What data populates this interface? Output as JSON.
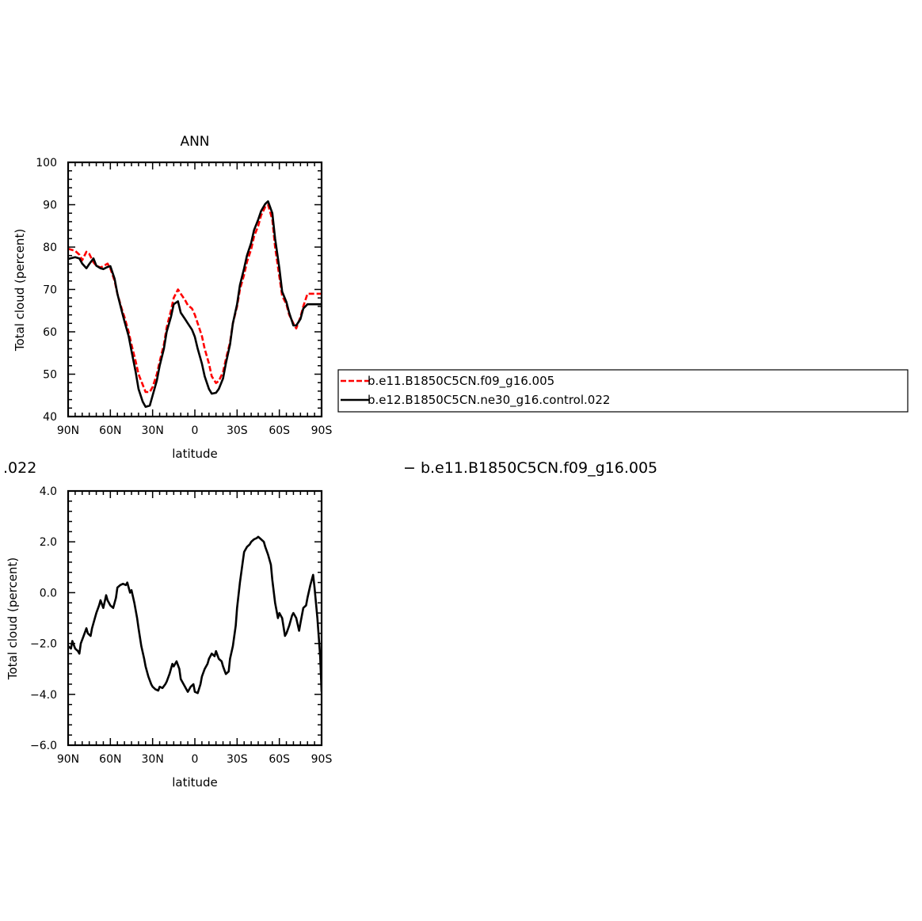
{
  "chart_data": [
    {
      "type": "line",
      "title": "ANN",
      "xlabel": "latitude",
      "ylabel": "Total cloud (percent)",
      "xlim": [
        90,
        -90
      ],
      "ylim": [
        40,
        100
      ],
      "x_ticks": [
        {
          "value": 90,
          "label": "90N"
        },
        {
          "value": 60,
          "label": "60N"
        },
        {
          "value": 30,
          "label": "30N"
        },
        {
          "value": 0,
          "label": "0"
        },
        {
          "value": -30,
          "label": "30S"
        },
        {
          "value": -60,
          "label": "60S"
        },
        {
          "value": -90,
          "label": "90S"
        }
      ],
      "y_ticks": [
        {
          "value": 40,
          "label": "40"
        },
        {
          "value": 50,
          "label": "50"
        },
        {
          "value": 60,
          "label": "60"
        },
        {
          "value": 70,
          "label": "70"
        },
        {
          "value": 80,
          "label": "80"
        },
        {
          "value": 90,
          "label": "90"
        },
        {
          "value": 100,
          "label": "100"
        }
      ],
      "grid": false,
      "legend_position": "right",
      "x": [
        90,
        85,
        82,
        80,
        77,
        75,
        72,
        70,
        67,
        65,
        62,
        60,
        57,
        55,
        52,
        50,
        47,
        45,
        42,
        40,
        37,
        35,
        32,
        30,
        27,
        25,
        22,
        20,
        17,
        15,
        12,
        10,
        7,
        5,
        2,
        0,
        -2,
        -5,
        -7,
        -10,
        -12,
        -15,
        -17,
        -20,
        -22,
        -25,
        -27,
        -30,
        -32,
        -35,
        -37,
        -40,
        -42,
        -45,
        -47,
        -50,
        -52,
        -55,
        -57,
        -60,
        -62,
        -65,
        -67,
        -70,
        -72,
        -75,
        -77,
        -80,
        -82,
        -85,
        -87,
        -90
      ],
      "series": [
        {
          "name": "b.e11.B1850C5CN.f09_g16.005",
          "color": "#ff0000",
          "style": "dashed",
          "values": [
            79.6,
            79.1,
            78.2,
            76.9,
            78.9,
            78.4,
            76.4,
            75.6,
            75.2,
            75.5,
            76.1,
            75.0,
            72.0,
            69.0,
            65.5,
            63.5,
            60.0,
            57.0,
            53.0,
            50.0,
            47.5,
            45.8,
            45.8,
            47.0,
            50.0,
            53.0,
            57.0,
            61.0,
            65.0,
            68.0,
            70.0,
            69.0,
            67.5,
            66.3,
            65.5,
            64.0,
            62.0,
            59.0,
            56.0,
            52.5,
            49.5,
            47.9,
            48.4,
            50.5,
            53.5,
            57.5,
            62.0,
            66.0,
            70.0,
            73.5,
            76.5,
            79.5,
            82.5,
            85.0,
            87.5,
            89.5,
            90.0,
            86.5,
            80.0,
            73.0,
            68.5,
            66.5,
            64.0,
            62.0,
            60.8,
            63.5,
            66.0,
            69.0,
            69.0,
            69.0,
            69.0,
            69.0
          ]
        },
        {
          "name": "b.e12.B1850C5CN.ne30_g16.control.022",
          "color": "#000000",
          "style": "solid",
          "values": [
            77.2,
            77.6,
            77.3,
            76.1,
            75.0,
            76.0,
            77.3,
            75.6,
            75.0,
            74.8,
            75.3,
            75.5,
            72.5,
            69.0,
            65.0,
            62.5,
            59.0,
            55.5,
            50.5,
            46.5,
            43.5,
            42.3,
            42.6,
            45.0,
            48.5,
            52.0,
            56.0,
            60.0,
            63.5,
            66.5,
            67.2,
            64.5,
            63.0,
            62.0,
            60.5,
            58.8,
            56.0,
            52.5,
            49.5,
            46.5,
            45.4,
            45.6,
            46.5,
            49.0,
            52.5,
            57.0,
            62.0,
            66.5,
            71.0,
            75.0,
            78.0,
            81.0,
            84.0,
            86.5,
            88.5,
            90.2,
            90.8,
            88.0,
            82.0,
            75.0,
            69.5,
            67.0,
            64.5,
            61.5,
            61.5,
            63.0,
            65.5,
            66.5,
            66.5,
            66.5,
            66.5,
            66.5
          ]
        }
      ]
    },
    {
      "type": "line",
      "subtitle_left": ".022",
      "subtitle_right": "− b.e11.B1850C5CN.f09_g16.005",
      "xlabel": "latitude",
      "ylabel": "Total cloud (percent)",
      "xlim": [
        90,
        -90
      ],
      "ylim": [
        -6.0,
        4.0
      ],
      "x_ticks": [
        {
          "value": 90,
          "label": "90N"
        },
        {
          "value": 60,
          "label": "60N"
        },
        {
          "value": 30,
          "label": "30N"
        },
        {
          "value": 0,
          "label": "0"
        },
        {
          "value": -30,
          "label": "30S"
        },
        {
          "value": -60,
          "label": "60S"
        },
        {
          "value": -90,
          "label": "90S"
        }
      ],
      "y_ticks": [
        {
          "value": -6.0,
          "label": "−6.0"
        },
        {
          "value": -4.0,
          "label": "−4.0"
        },
        {
          "value": -2.0,
          "label": "−2.0"
        },
        {
          "value": 0.0,
          "label": "0.0"
        },
        {
          "value": 2.0,
          "label": "2.0"
        },
        {
          "value": 4.0,
          "label": "4.0"
        }
      ],
      "grid": false,
      "series": [
        {
          "color": "#000000",
          "style": "solid",
          "x": [
            90,
            88,
            87,
            85,
            83,
            82,
            81,
            79,
            77,
            76,
            74,
            73,
            71,
            70,
            68,
            67,
            65,
            63,
            62,
            60,
            58,
            56,
            55,
            53,
            51,
            49,
            48,
            46,
            45,
            43,
            41,
            40,
            38,
            36,
            35,
            33,
            31,
            30,
            28,
            26,
            25,
            23,
            21,
            20,
            18,
            16,
            15,
            13,
            11,
            10,
            8,
            6,
            5,
            3,
            1,
            0,
            -2,
            -4,
            -5,
            -7,
            -9,
            -10,
            -12,
            -14,
            -15,
            -17,
            -19,
            -20,
            -22,
            -24,
            -25,
            -27,
            -29,
            -30,
            -32,
            -34,
            -35,
            -37,
            -39,
            -40,
            -42,
            -44,
            -45,
            -47,
            -49,
            -50,
            -52,
            -54,
            -55,
            -57,
            -59,
            -60,
            -62,
            -64,
            -65,
            -67,
            -69,
            -70,
            -72,
            -74,
            -75,
            -77,
            -79,
            -80,
            -82,
            -84,
            -85,
            -87,
            -89,
            -90
          ],
          "values": [
            -2.1,
            -2.2,
            -1.9,
            -2.2,
            -2.3,
            -2.4,
            -2.0,
            -1.7,
            -1.4,
            -1.6,
            -1.7,
            -1.4,
            -1.0,
            -0.8,
            -0.5,
            -0.3,
            -0.6,
            -0.1,
            -0.3,
            -0.5,
            -0.6,
            -0.2,
            0.2,
            0.3,
            0.35,
            0.3,
            0.4,
            0.0,
            0.1,
            -0.4,
            -1.0,
            -1.4,
            -2.1,
            -2.6,
            -2.9,
            -3.3,
            -3.6,
            -3.7,
            -3.8,
            -3.85,
            -3.7,
            -3.75,
            -3.6,
            -3.5,
            -3.2,
            -2.8,
            -2.9,
            -2.7,
            -3.0,
            -3.4,
            -3.6,
            -3.8,
            -3.9,
            -3.7,
            -3.6,
            -3.9,
            -3.95,
            -3.6,
            -3.3,
            -3.0,
            -2.8,
            -2.6,
            -2.4,
            -2.5,
            -2.3,
            -2.6,
            -2.7,
            -2.9,
            -3.2,
            -3.1,
            -2.6,
            -2.1,
            -1.3,
            -0.6,
            0.4,
            1.2,
            1.6,
            1.8,
            1.9,
            2.0,
            2.1,
            2.15,
            2.2,
            2.1,
            2.0,
            1.8,
            1.5,
            1.1,
            0.5,
            -0.4,
            -1.0,
            -0.8,
            -1.0,
            -1.7,
            -1.6,
            -1.3,
            -0.9,
            -0.8,
            -1.0,
            -1.5,
            -1.2,
            -0.6,
            -0.5,
            -0.2,
            0.3,
            0.7,
            0.2,
            -1.0,
            -2.5,
            -3.9
          ]
        }
      ]
    }
  ]
}
